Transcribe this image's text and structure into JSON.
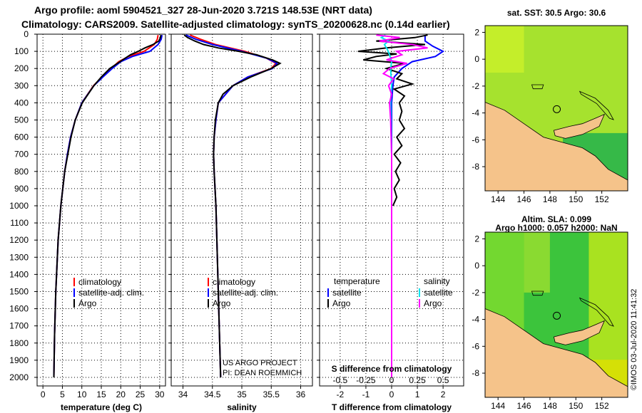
{
  "header": {
    "line1": "Argo profile: aoml 5904521_327 28-Jun-2020 3.721S 148.53E (NRT data)",
    "line2": "Climatology: CARS2009. Satellite-adjusted climatology: synTS_20200628.nc (0.14d earlier)"
  },
  "colors": {
    "climatology": "#ff0000",
    "satellite": "#0000ff",
    "argo": "#000000",
    "sal_satellite": "#00e5ee",
    "sal_argo": "#ff00ff",
    "land": "#f5c38a"
  },
  "depth_axis": {
    "ticks": [
      "0",
      "100",
      "200",
      "300",
      "400",
      "500",
      "600",
      "700",
      "800",
      "900",
      "1000",
      "1100",
      "1200",
      "1300",
      "1400",
      "1500",
      "1600",
      "1700",
      "1800",
      "1900",
      "2000"
    ]
  },
  "credits": {
    "line1": "US ARGO PROJECT",
    "line2": "PI: DEAN ROEMMICH"
  },
  "timestamp": "©IMOS 03-Jul-2020 11:41:32",
  "chart_data": [
    {
      "type": "line",
      "name": "temperature-profile",
      "xlabel": "temperature (deg C)",
      "xlim": [
        -1.5,
        31.5
      ],
      "ylim": [
        0,
        2050
      ],
      "x_ticks": [
        "0",
        "5",
        "10",
        "15",
        "20",
        "25",
        "30"
      ],
      "y_inverted": true,
      "legend": {
        "placement": "lower-center",
        "entries": [
          "climatology",
          "satellite-adj. clim.",
          "Argo"
        ]
      },
      "series": [
        {
          "name": "climatology",
          "depth": [
            5,
            30,
            60,
            100,
            130,
            160,
            200,
            250,
            300,
            400,
            500,
            600,
            700,
            800,
            1000,
            1200,
            1500,
            1750,
            2000
          ],
          "values": [
            29.6,
            29.4,
            28.6,
            26,
            22,
            19.5,
            17.5,
            15.2,
            13,
            10,
            8.3,
            7.1,
            6.3,
            5.6,
            4.6,
            3.9,
            3.3,
            3.0,
            2.8
          ]
        },
        {
          "name": "satellite-adj. clim.",
          "depth": [
            5,
            30,
            60,
            100,
            130,
            160,
            200,
            250,
            300,
            400,
            500,
            600,
            700,
            800,
            1000,
            1200,
            1500,
            1750,
            2000
          ],
          "values": [
            30.6,
            30.4,
            29.6,
            27.5,
            23,
            20,
            17.8,
            15.4,
            13.1,
            10,
            8.3,
            7.1,
            6.3,
            5.6,
            4.6,
            3.9,
            3.3,
            3.0,
            2.8
          ]
        },
        {
          "name": "Argo",
          "depth": [
            5,
            20,
            40,
            60,
            80,
            100,
            120,
            150,
            200,
            250,
            300,
            350,
            400,
            500,
            600,
            700,
            800,
            1000,
            1200,
            1500,
            1750,
            2000
          ],
          "values": [
            30.3,
            30.2,
            29.8,
            28.3,
            26.2,
            24.5,
            22.5,
            20.5,
            17.2,
            15,
            13.1,
            11.6,
            10.1,
            8.3,
            7.2,
            6.4,
            5.6,
            4.6,
            3.9,
            3.3,
            3.0,
            2.8
          ]
        }
      ]
    },
    {
      "type": "line",
      "name": "salinity-profile",
      "xlabel": "salinity",
      "xlim": [
        33.8,
        36.2
      ],
      "ylim": [
        0,
        2050
      ],
      "x_ticks": [
        "34",
        "34.5",
        "35",
        "35.5",
        "36"
      ],
      "y_inverted": true,
      "legend": {
        "placement": "lower-center",
        "entries": [
          "climatology",
          "satellite-adj. clim.",
          "Argo"
        ]
      },
      "series": [
        {
          "name": "climatology",
          "depth": [
            5,
            30,
            60,
            100,
            140,
            170,
            200,
            250,
            300,
            400,
            500,
            600,
            700,
            800,
            1000,
            1500,
            2000
          ],
          "values": [
            34.12,
            34.3,
            34.55,
            35.05,
            35.42,
            35.58,
            35.5,
            35.1,
            34.85,
            34.6,
            34.56,
            34.53,
            34.52,
            34.53,
            34.56,
            34.6,
            34.64
          ]
        },
        {
          "name": "satellite-adj. clim.",
          "depth": [
            5,
            30,
            60,
            100,
            140,
            170,
            200,
            250,
            300,
            400,
            500,
            600,
            700,
            800,
            1000,
            1500,
            2000
          ],
          "values": [
            34.05,
            34.22,
            34.5,
            35.0,
            35.42,
            35.6,
            35.52,
            35.1,
            34.85,
            34.6,
            34.56,
            34.53,
            34.52,
            34.53,
            34.56,
            34.6,
            34.64
          ]
        },
        {
          "name": "Argo",
          "depth": [
            5,
            20,
            40,
            60,
            80,
            100,
            120,
            150,
            170,
            200,
            250,
            300,
            350,
            400,
            500,
            600,
            700,
            800,
            1000,
            1500,
            2000
          ],
          "values": [
            34.02,
            34.08,
            34.2,
            34.35,
            34.6,
            34.95,
            35.25,
            35.52,
            35.65,
            35.5,
            35.15,
            34.85,
            34.68,
            34.6,
            34.55,
            34.53,
            34.52,
            34.53,
            34.56,
            34.6,
            34.64
          ]
        }
      ]
    },
    {
      "type": "line",
      "name": "difference-profile",
      "xlabel": "T difference from climatology",
      "xlabel_top": "S difference from climatology",
      "xlim": [
        -2.8,
        2.8
      ],
      "ylim": [
        0,
        2050
      ],
      "x_ticks": [
        "-2",
        "-1",
        "0",
        "1",
        "2"
      ],
      "x_ticks_top": [
        "-0.5",
        "-0.25",
        "0",
        "0.25",
        "0.5"
      ],
      "y_inverted": true,
      "legend": {
        "placement": "lower-center",
        "temperature_title": "temperature",
        "salinity_title": "salinity",
        "entries_t": [
          "satellite",
          "Argo"
        ],
        "entries_s": [
          "satellite",
          "Argo"
        ]
      },
      "series": [
        {
          "name": "T satellite",
          "depth": [
            5,
            40,
            70,
            100,
            130,
            160,
            200,
            250,
            300,
            400,
            600,
            800,
            1000,
            1500,
            2000
          ],
          "values": [
            1.3,
            1.3,
            1.6,
            2.0,
            1.7,
            0.8,
            0.4,
            0.1,
            0.05,
            0,
            0,
            0,
            0,
            0,
            0
          ]
        },
        {
          "name": "T Argo",
          "depth": [
            5,
            20,
            40,
            60,
            80,
            100,
            115,
            130,
            150,
            170,
            200,
            230,
            260,
            290,
            320,
            360,
            400,
            450,
            500,
            550,
            600,
            650,
            700,
            750,
            800,
            850,
            900,
            950,
            1000
          ],
          "values": [
            1.4,
            0.9,
            -0.6,
            1.3,
            -0.2,
            -1.3,
            0.2,
            -0.6,
            -1.1,
            0.5,
            -0.2,
            0.4,
            0.2,
            0.8,
            0.1,
            0.5,
            0.3,
            0.4,
            0.3,
            0.5,
            0.2,
            0.4,
            0.1,
            0.35,
            0.15,
            0.3,
            0.1,
            0.2,
            0.05
          ]
        },
        {
          "name": "S satellite",
          "depth": [
            5,
            20,
            40,
            60,
            90,
            120,
            160,
            200,
            300,
            400,
            700,
            1000,
            1500,
            2000
          ],
          "values": [
            -0.06,
            -0.1,
            -0.03,
            -0.07,
            -0.04,
            -0.02,
            0.0,
            -0.01,
            0,
            -0.01,
            0,
            0,
            0,
            0
          ]
        },
        {
          "name": "S Argo",
          "depth": [
            5,
            20,
            40,
            60,
            80,
            100,
            120,
            150,
            170,
            200,
            230,
            260,
            300,
            350,
            400,
            500,
            700,
            1000,
            1500,
            2000
          ],
          "values": [
            -0.15,
            0.08,
            -0.12,
            0.2,
            0.35,
            0.05,
            0.1,
            -0.05,
            0.15,
            -0.02,
            -0.08,
            0.02,
            -0.03,
            0.0,
            -0.02,
            -0.01,
            0,
            0,
            0,
            0
          ]
        }
      ]
    },
    {
      "type": "heatmap",
      "name": "sst-map",
      "title": "sat. SST: 30.5 Argo: 30.6",
      "xlim": [
        143,
        154
      ],
      "ylim": [
        -9.8,
        2.5
      ],
      "x_ticks": [
        "144",
        "146",
        "148",
        "150",
        "152"
      ],
      "y_ticks": [
        "2",
        "0",
        "-2",
        "-4",
        "-6",
        "-8"
      ],
      "argo_position": [
        148.53,
        -3.721
      ]
    },
    {
      "type": "heatmap",
      "name": "sla-map",
      "title": "Altim. SLA: 0.099",
      "subtitle": "Argo h1000: 0.057 h2000: NaN",
      "xlim": [
        143,
        154
      ],
      "ylim": [
        -9.8,
        2.5
      ],
      "x_ticks": [
        "144",
        "146",
        "148",
        "150",
        "152"
      ],
      "y_ticks": [
        "2",
        "0",
        "-2",
        "-4",
        "-6",
        "-8"
      ],
      "argo_position": [
        148.53,
        -3.721
      ]
    }
  ]
}
